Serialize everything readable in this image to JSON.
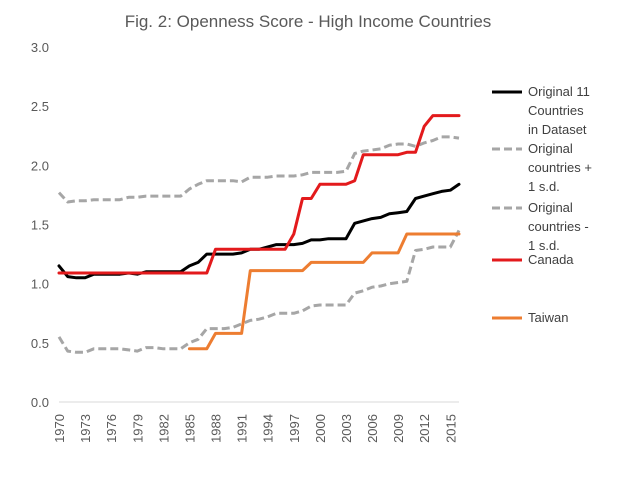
{
  "chart_data": {
    "type": "line",
    "title": "Fig. 2: Openness Score - High Income Countries",
    "xlabel": "",
    "ylabel": "",
    "ylim": [
      0,
      3
    ],
    "yticks": [
      "0.0",
      "0.5",
      "1.0",
      "1.5",
      "2.0",
      "2.5",
      "3.0"
    ],
    "xticks": [
      "1970",
      "1973",
      "1976",
      "1979",
      "1982",
      "1985",
      "1988",
      "1991",
      "1994",
      "1997",
      "2000",
      "2003",
      "2006",
      "2009",
      "2012",
      "2015"
    ],
    "grid": false,
    "legend_position": "right",
    "x": [
      1970,
      1971,
      1972,
      1973,
      1974,
      1975,
      1976,
      1977,
      1978,
      1979,
      1980,
      1981,
      1982,
      1983,
      1984,
      1985,
      1986,
      1987,
      1988,
      1989,
      1990,
      1991,
      1992,
      1993,
      1994,
      1995,
      1996,
      1997,
      1998,
      1999,
      2000,
      2001,
      2002,
      2003,
      2004,
      2005,
      2006,
      2007,
      2008,
      2009,
      2010,
      2011,
      2012,
      2013,
      2014,
      2015,
      2016
    ],
    "series": [
      {
        "name": "Original 11 Countries in Dataset",
        "color": "#000000",
        "dash": "solid",
        "values": [
          1.15,
          1.06,
          1.05,
          1.05,
          1.08,
          1.08,
          1.08,
          1.08,
          1.09,
          1.08,
          1.1,
          1.1,
          1.1,
          1.1,
          1.1,
          1.15,
          1.18,
          1.25,
          1.25,
          1.25,
          1.25,
          1.26,
          1.29,
          1.29,
          1.31,
          1.33,
          1.33,
          1.33,
          1.34,
          1.37,
          1.37,
          1.38,
          1.38,
          1.38,
          1.51,
          1.53,
          1.55,
          1.56,
          1.59,
          1.6,
          1.61,
          1.72,
          1.74,
          1.76,
          1.78,
          1.79,
          1.84
        ]
      },
      {
        "name": "Original countries + 1 s.d.",
        "color": "#a6a6a6",
        "dash": "dashed",
        "values": [
          1.77,
          1.69,
          1.7,
          1.7,
          1.71,
          1.71,
          1.71,
          1.71,
          1.73,
          1.73,
          1.74,
          1.74,
          1.74,
          1.74,
          1.74,
          1.8,
          1.84,
          1.87,
          1.87,
          1.87,
          1.87,
          1.86,
          1.9,
          1.9,
          1.9,
          1.91,
          1.91,
          1.91,
          1.92,
          1.94,
          1.94,
          1.94,
          1.94,
          1.95,
          2.1,
          2.12,
          2.13,
          2.14,
          2.17,
          2.18,
          2.18,
          2.16,
          2.19,
          2.21,
          2.24,
          2.24,
          2.23
        ]
      },
      {
        "name": "Original countries - 1 s.d.",
        "color": "#a6a6a6",
        "dash": "dashed",
        "values": [
          0.55,
          0.43,
          0.42,
          0.42,
          0.45,
          0.45,
          0.45,
          0.45,
          0.44,
          0.43,
          0.46,
          0.46,
          0.45,
          0.45,
          0.45,
          0.5,
          0.53,
          0.62,
          0.62,
          0.62,
          0.63,
          0.66,
          0.69,
          0.7,
          0.72,
          0.75,
          0.75,
          0.75,
          0.77,
          0.81,
          0.82,
          0.82,
          0.82,
          0.82,
          0.92,
          0.94,
          0.97,
          0.98,
          1.0,
          1.01,
          1.02,
          1.28,
          1.29,
          1.31,
          1.31,
          1.31,
          1.45
        ]
      },
      {
        "name": "Canada",
        "color": "#e31a1c",
        "dash": "solid",
        "values": [
          1.09,
          1.09,
          1.09,
          1.09,
          1.09,
          1.09,
          1.09,
          1.09,
          1.09,
          1.09,
          1.09,
          1.09,
          1.09,
          1.09,
          1.09,
          1.09,
          1.09,
          1.09,
          1.29,
          1.29,
          1.29,
          1.29,
          1.29,
          1.29,
          1.29,
          1.29,
          1.29,
          1.42,
          1.72,
          1.72,
          1.84,
          1.84,
          1.84,
          1.84,
          1.87,
          2.09,
          2.09,
          2.09,
          2.09,
          2.09,
          2.11,
          2.11,
          2.33,
          2.42,
          2.42,
          2.42,
          2.42
        ]
      },
      {
        "name": "Taiwan",
        "color": "#ed7d31",
        "dash": "solid",
        "values": [
          null,
          null,
          null,
          null,
          null,
          null,
          null,
          null,
          null,
          null,
          null,
          null,
          null,
          null,
          null,
          0.45,
          0.45,
          0.45,
          0.58,
          0.58,
          0.58,
          0.58,
          1.11,
          1.11,
          1.11,
          1.11,
          1.11,
          1.11,
          1.11,
          1.18,
          1.18,
          1.18,
          1.18,
          1.18,
          1.18,
          1.18,
          1.26,
          1.26,
          1.26,
          1.26,
          1.42,
          1.42,
          1.42,
          1.42,
          1.42,
          1.42,
          1.42
        ]
      }
    ]
  }
}
